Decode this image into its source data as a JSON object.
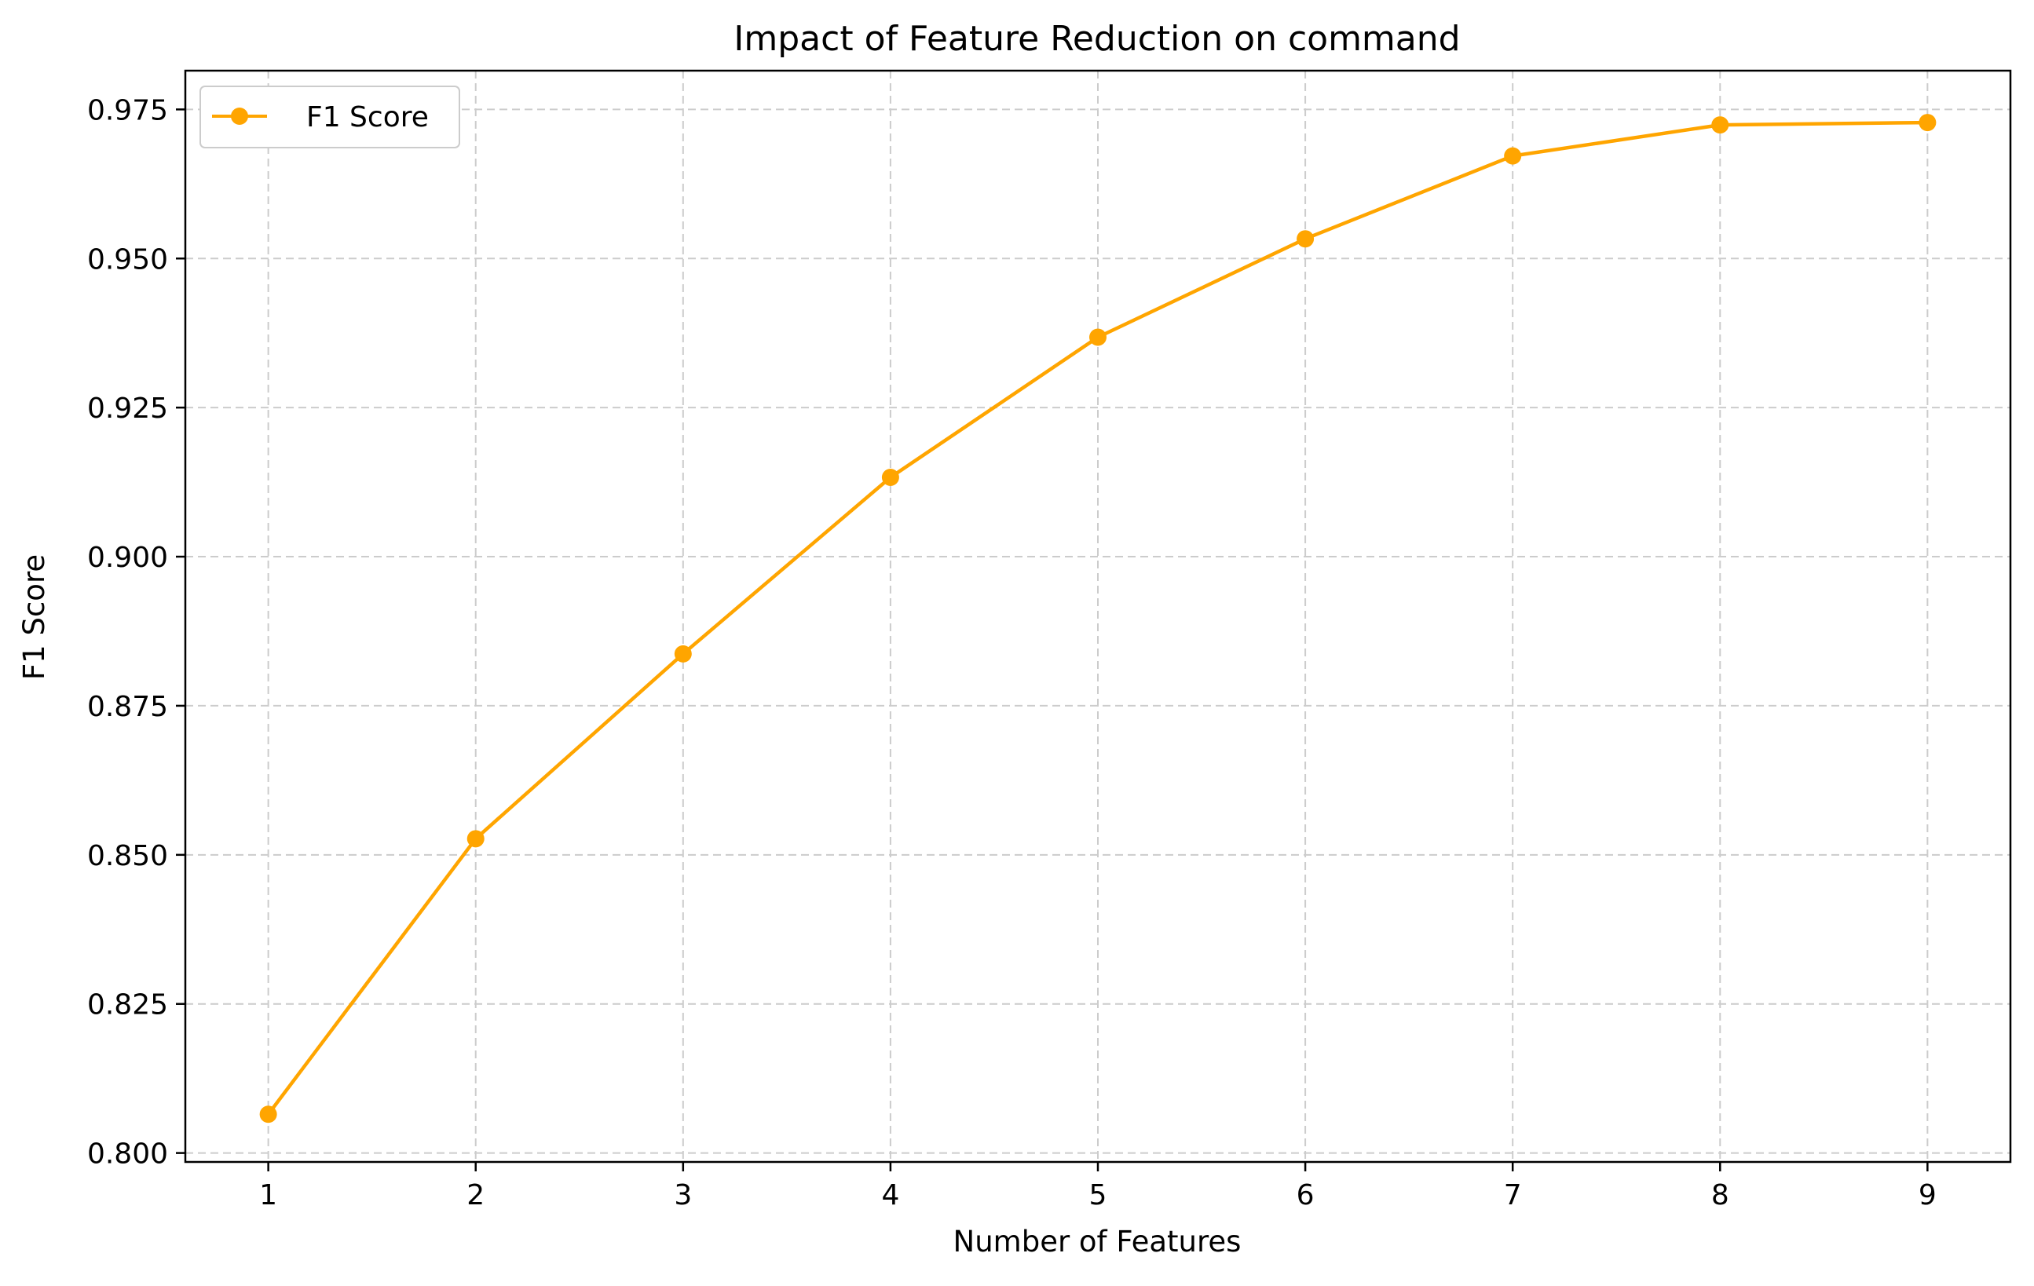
{
  "chart_data": {
    "type": "line",
    "title": "Impact of Feature Reduction on command",
    "xlabel": "Number of Features",
    "ylabel": "F1 Score",
    "x": [
      1,
      2,
      3,
      4,
      5,
      6,
      7,
      8,
      9
    ],
    "series": [
      {
        "name": "F1 Score",
        "color": "#ffa500",
        "marker": "circle",
        "values": [
          0.8065,
          0.8527,
          0.8837,
          0.9133,
          0.9368,
          0.9533,
          0.9672,
          0.9724,
          0.9728
        ]
      }
    ],
    "xlim": [
      0.6,
      9.4
    ],
    "ylim": [
      0.7985,
      0.9815
    ],
    "xticks": [
      1,
      2,
      3,
      4,
      5,
      6,
      7,
      8,
      9
    ],
    "xtick_labels": [
      "1",
      "2",
      "3",
      "4",
      "5",
      "6",
      "7",
      "8",
      "9"
    ],
    "yticks": [
      0.8,
      0.825,
      0.85,
      0.875,
      0.9,
      0.925,
      0.95,
      0.975
    ],
    "ytick_labels": [
      "0.800",
      "0.825",
      "0.850",
      "0.875",
      "0.900",
      "0.925",
      "0.950",
      "0.975"
    ],
    "grid": true,
    "grid_style": "dashed",
    "grid_color": "#cccccc",
    "legend_position": "upper-left"
  }
}
